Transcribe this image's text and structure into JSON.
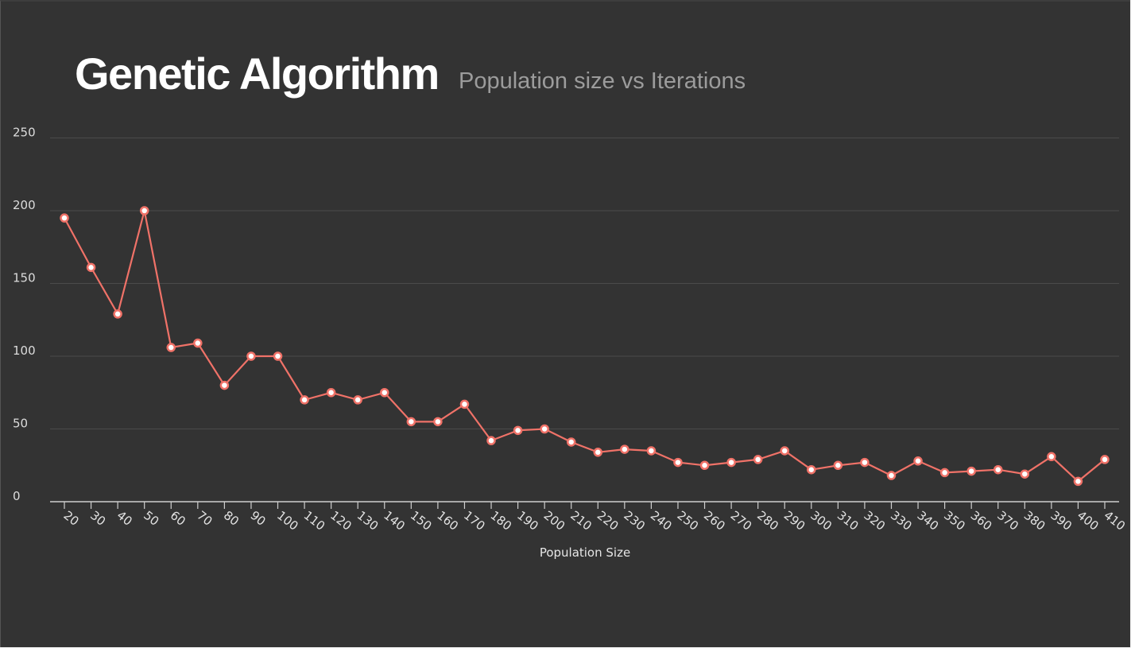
{
  "chart_data": {
    "type": "line",
    "title": "Genetic Algorithm",
    "subtitle": "Population size vs Iterations",
    "xlabel": "Population Size",
    "ylabel": "",
    "ylim": [
      0,
      250
    ],
    "yticks": [
      0,
      50,
      100,
      150,
      200,
      250
    ],
    "grid": true,
    "legend": "none",
    "x": [
      20,
      30,
      40,
      50,
      60,
      70,
      80,
      90,
      100,
      110,
      120,
      130,
      140,
      150,
      160,
      170,
      180,
      190,
      200,
      210,
      220,
      230,
      240,
      250,
      260,
      270,
      280,
      290,
      300,
      310,
      320,
      330,
      340,
      350,
      360,
      370,
      380,
      390,
      400,
      410
    ],
    "series": [
      {
        "values": [
          195,
          161,
          129,
          200,
          106,
          109,
          80,
          100,
          100,
          70,
          75,
          70,
          75,
          55,
          55,
          67,
          42,
          49,
          50,
          41,
          34,
          36,
          35,
          27,
          25,
          27,
          29,
          35,
          22,
          25,
          27,
          18,
          28,
          20,
          21,
          22,
          19,
          31,
          14,
          29
        ],
        "color": "#f07268"
      }
    ]
  },
  "colors": {
    "background": "#333333",
    "line": "#f07268",
    "marker_fill": "#ffffff",
    "grid": "#4b4b4b"
  }
}
